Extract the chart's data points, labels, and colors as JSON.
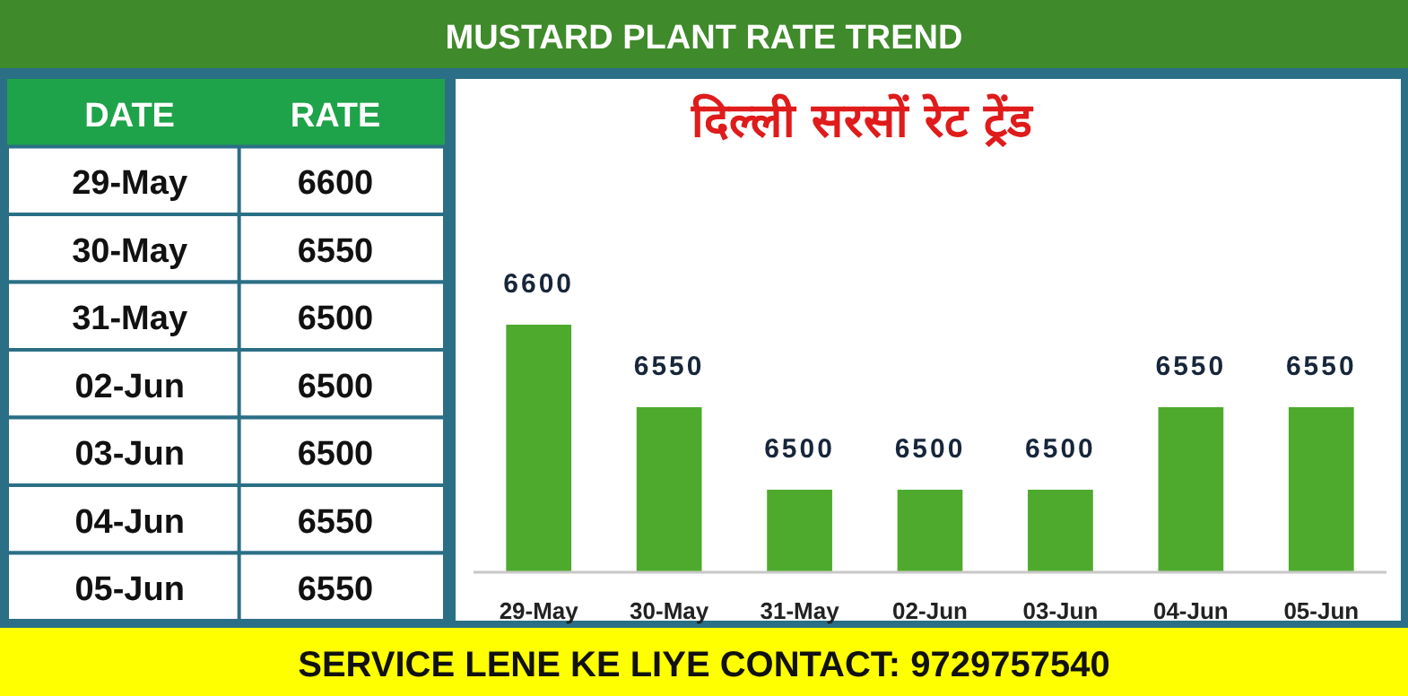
{
  "chart_data": [
    {
      "type": "other",
      "subtitle": "MUSTARD PLANT RATE TREND",
      "annotations": [
        "DATE",
        "RATE"
      ],
      "categories": [
        "29-May",
        "30-May",
        "31-May",
        "02-Jun",
        "03-Jun",
        "04-Jun",
        "05-Jun"
      ],
      "values": [
        6600,
        6550,
        6500,
        6500,
        6500,
        6550,
        6550
      ],
      "data_labels": true
    },
    {
      "type": "bar",
      "title": "दिल्ली सरसों रेट ट्रेंड",
      "categories": [
        "29-May",
        "30-May",
        "31-May",
        "02-Jun",
        "03-Jun",
        "04-Jun",
        "05-Jun"
      ],
      "values": [
        6600,
        6550,
        6500,
        6500,
        6500,
        6550,
        6550
      ],
      "color": "#4eaa2c",
      "data_labels": true,
      "ylim": [
        6450,
        6600
      ],
      "annotations": [
        "SERVICE LENE KE LIYE CONTACT: 9729757540"
      ]
    }
  ]
}
